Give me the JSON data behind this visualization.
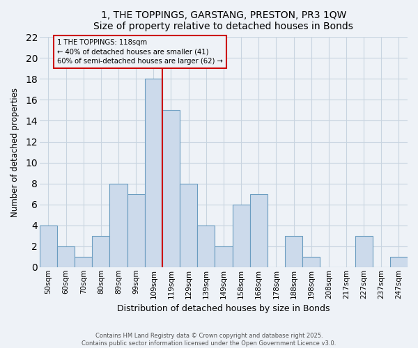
{
  "title": "1, THE TOPPINGS, GARSTANG, PRESTON, PR3 1QW",
  "subtitle": "Size of property relative to detached houses in Bonds",
  "xlabel": "Distribution of detached houses by size in Bonds",
  "ylabel": "Number of detached properties",
  "bar_labels": [
    "50sqm",
    "60sqm",
    "70sqm",
    "80sqm",
    "89sqm",
    "99sqm",
    "109sqm",
    "119sqm",
    "129sqm",
    "139sqm",
    "149sqm",
    "158sqm",
    "168sqm",
    "178sqm",
    "188sqm",
    "198sqm",
    "208sqm",
    "217sqm",
    "227sqm",
    "237sqm",
    "247sqm"
  ],
  "bar_values": [
    4,
    2,
    1,
    3,
    8,
    7,
    18,
    15,
    8,
    4,
    2,
    6,
    7,
    0,
    3,
    1,
    0,
    0,
    3,
    0,
    1
  ],
  "bar_color": "#ccdaeb",
  "bar_edgecolor": "#6a9cc0",
  "vline_x": 6.5,
  "vline_color": "#cc0000",
  "annotation_title": "1 THE TOPPINGS: 118sqm",
  "annotation_line1": "← 40% of detached houses are smaller (41)",
  "annotation_line2": "60% of semi-detached houses are larger (62) →",
  "annotation_box_edgecolor": "#cc0000",
  "ylim": [
    0,
    22
  ],
  "yticks": [
    0,
    2,
    4,
    6,
    8,
    10,
    12,
    14,
    16,
    18,
    20,
    22
  ],
  "footer1": "Contains HM Land Registry data © Crown copyright and database right 2025.",
  "footer2": "Contains public sector information licensed under the Open Government Licence v3.0.",
  "bg_color": "#eef2f7",
  "grid_color": "#c8d4e0"
}
